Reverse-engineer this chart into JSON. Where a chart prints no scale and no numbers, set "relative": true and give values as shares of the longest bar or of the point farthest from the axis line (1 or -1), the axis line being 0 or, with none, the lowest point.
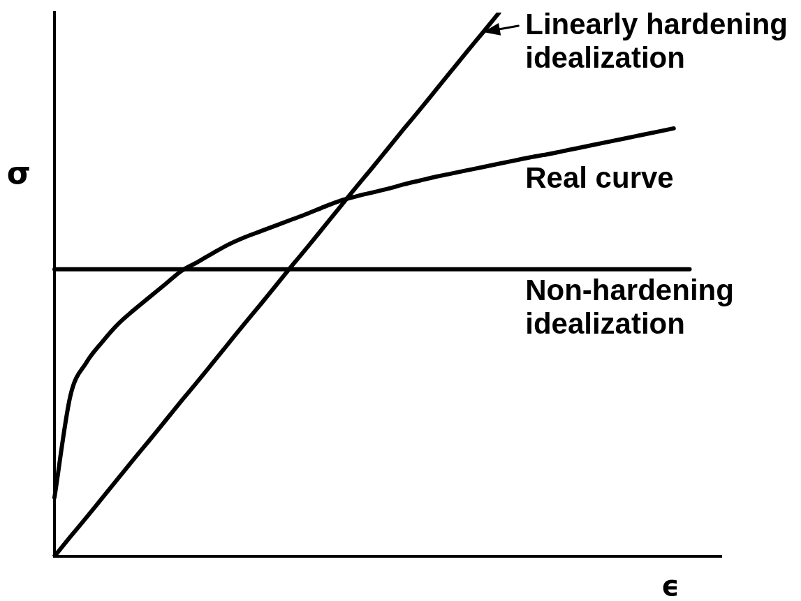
{
  "chart_data": {
    "type": "line",
    "relative": true,
    "tick_labels": false,
    "marker": "none",
    "xlabel": "ϵ",
    "ylabel": "σ",
    "categories": [
      null,
      null,
      null,
      null,
      null,
      null,
      null,
      null,
      null,
      null,
      null,
      null,
      null,
      null,
      null,
      null,
      null,
      null,
      null,
      null,
      null,
      null,
      null,
      null,
      null,
      null,
      null,
      null,
      null,
      null,
      null,
      null,
      null,
      null,
      null,
      null,
      null,
      null,
      null,
      null,
      null,
      null,
      null
    ],
    "series": [
      {
        "name": "Linearly hardening idealization",
        "color": "#000000",
        "values": [
          0,
          0.036,
          0.071,
          0.107,
          0.143,
          0.179,
          0.214,
          0.25,
          0.286,
          0.321,
          0.357,
          0.393,
          0.429,
          0.464,
          0.5,
          0.536,
          0.571,
          0.607,
          0.643,
          0.679,
          0.714,
          0.75,
          0.786,
          0.821,
          0.857,
          0.893,
          0.929,
          0.964,
          1,
          null,
          null,
          null,
          null,
          null,
          null,
          null,
          null,
          null,
          null,
          null,
          null,
          null,
          null
        ]
      },
      {
        "name": "Real curve",
        "color": "#000000",
        "values": [
          0.108,
          0.295,
          0.356,
          0.394,
          0.427,
          0.453,
          0.477,
          0.501,
          0.525,
          0.541,
          0.558,
          0.574,
          0.587,
          0.598,
          0.609,
          0.62,
          0.631,
          0.643,
          0.654,
          0.662,
          0.669,
          0.676,
          0.684,
          0.691,
          0.698,
          0.704,
          0.71,
          0.716,
          0.722,
          0.728,
          0.734,
          0.739,
          0.745,
          0.751,
          0.757,
          0.763,
          0.769,
          0.775,
          0.781,
          0.787,
          null,
          null,
          null
        ]
      },
      {
        "name": "Non-hardening idealization",
        "color": "#000000",
        "values": [
          0.528,
          0.528,
          0.528,
          0.528,
          0.528,
          0.528,
          0.528,
          0.528,
          0.528,
          0.528,
          0.528,
          0.528,
          0.528,
          0.528,
          0.528,
          0.528,
          0.528,
          0.528,
          0.528,
          0.528,
          0.528,
          0.528,
          0.528,
          0.528,
          0.528,
          0.528,
          0.528,
          0.528,
          0.528,
          0.528,
          0.528,
          0.528,
          0.528,
          0.528,
          0.528,
          0.528,
          0.528,
          0.528,
          0.528,
          0.528,
          0.528,
          null,
          null
        ]
      }
    ]
  }
}
